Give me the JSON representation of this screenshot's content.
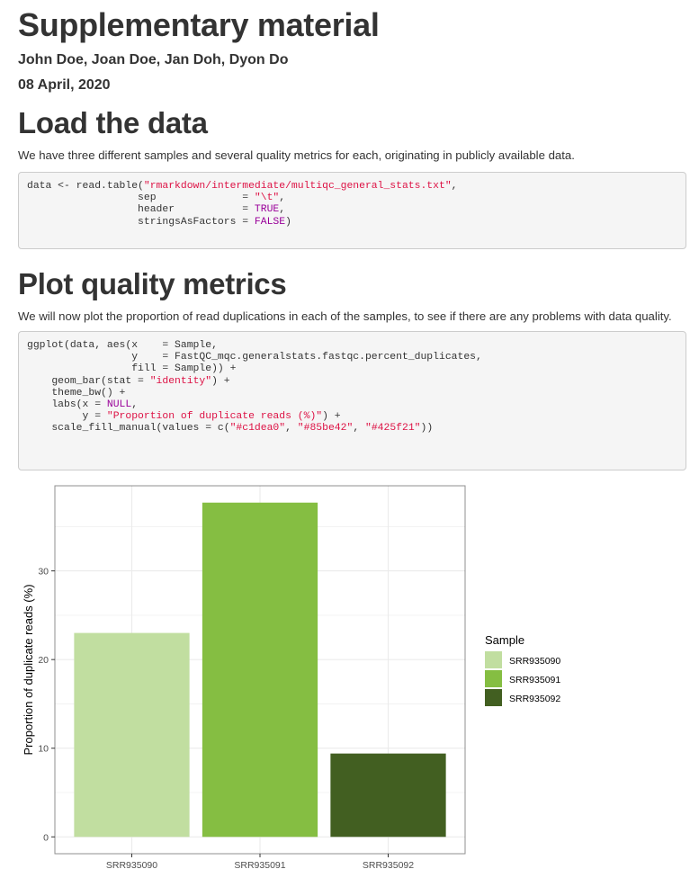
{
  "document": {
    "title": "Supplementary material",
    "authors": "John Doe, Joan Doe, Jan Doh, Dyon Do",
    "date": "08 April, 2020"
  },
  "section_load": {
    "heading": "Load the data",
    "paragraph": "We have three different samples and several quality metrics for each, originating in publicly available data."
  },
  "code_load": {
    "lines": [
      [
        {
          "t": "data <- read.table("
        },
        {
          "t": "\"rmarkdown/intermediate/multiqc_general_stats.txt\"",
          "c": "s"
        },
        {
          "t": ","
        }
      ],
      [
        {
          "t": "                  sep              = "
        },
        {
          "t": "\"\\t\"",
          "c": "s"
        },
        {
          "t": ","
        }
      ],
      [
        {
          "t": "                  header           = "
        },
        {
          "t": "TRUE",
          "c": "k"
        },
        {
          "t": ","
        }
      ],
      [
        {
          "t": "                  stringsAsFactors = "
        },
        {
          "t": "FALSE",
          "c": "k"
        },
        {
          "t": ")"
        }
      ]
    ]
  },
  "section_plot": {
    "heading": "Plot quality metrics",
    "paragraph": "We will now plot the proportion of read duplications in each of the samples, to see if there are any problems with data quality."
  },
  "code_plot": {
    "lines": [
      [
        {
          "t": "ggplot(data, aes(x    = Sample,"
        }
      ],
      [
        {
          "t": "                 y    = FastQC_mqc.generalstats.fastqc.percent_duplicates,"
        }
      ],
      [
        {
          "t": "                 fill = Sample)) +"
        }
      ],
      [
        {
          "t": "    geom_bar(stat = "
        },
        {
          "t": "\"identity\"",
          "c": "s"
        },
        {
          "t": ") +"
        }
      ],
      [
        {
          "t": "    theme_bw() +"
        }
      ],
      [
        {
          "t": "    labs(x = "
        },
        {
          "t": "NULL",
          "c": "k"
        },
        {
          "t": ","
        }
      ],
      [
        {
          "t": "         y = "
        },
        {
          "t": "\"Proportion of duplicate reads (%)\"",
          "c": "s"
        },
        {
          "t": ") +"
        }
      ],
      [
        {
          "t": "    scale_fill_manual(values = c("
        },
        {
          "t": "\"#c1dea0\"",
          "c": "s"
        },
        {
          "t": ", "
        },
        {
          "t": "\"#85be42\"",
          "c": "s"
        },
        {
          "t": ", "
        },
        {
          "t": "\"#425f21\"",
          "c": "s"
        },
        {
          "t": "))"
        }
      ]
    ]
  },
  "colors": {
    "code_string": "#dd1144",
    "code_keyword": "#990099"
  },
  "chart_data": {
    "type": "bar",
    "categories": [
      "SRR935090",
      "SRR935091",
      "SRR935092"
    ],
    "values": [
      23.0,
      37.7,
      9.4
    ],
    "colors": [
      "#c1dea0",
      "#85be42",
      "#425f21"
    ],
    "xlabel": "",
    "ylabel": "Proportion of duplicate reads (%)",
    "ylim": [
      -1.9,
      39.6
    ],
    "yticks": [
      0,
      10,
      20,
      30
    ],
    "grid": true,
    "legend": {
      "title": "Sample",
      "position": "right",
      "entries": [
        "SRR935090",
        "SRR935091",
        "SRR935092"
      ]
    }
  }
}
